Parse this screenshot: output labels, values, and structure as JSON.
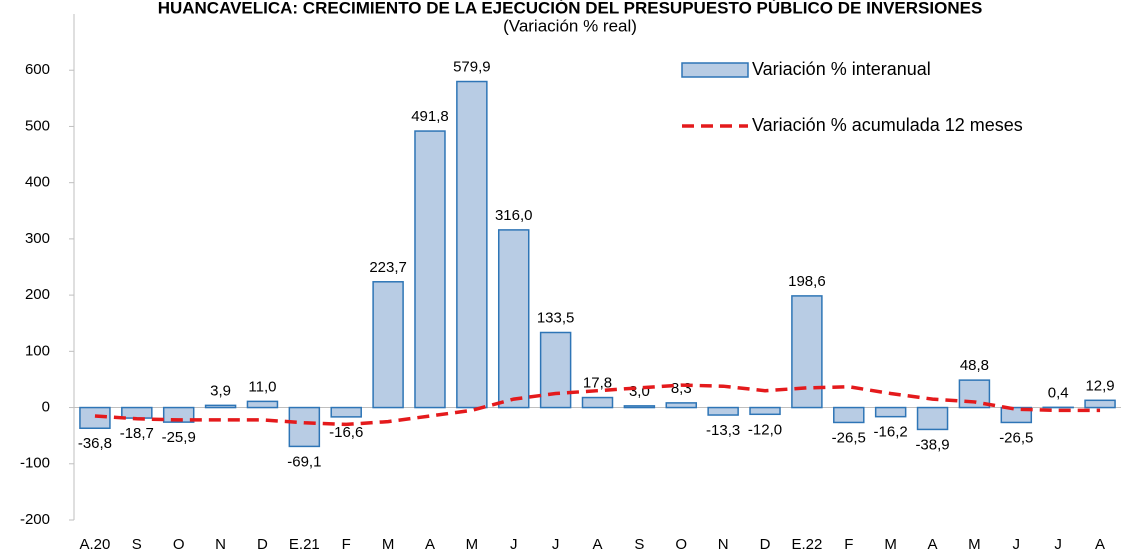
{
  "chart_data": {
    "type": "bar",
    "title": "HUANCAVELICA: CRECIMIENTO DE LA EJECUCIÓN DEL PRESUPUESTO PÚBLICO DE INVERSIONES",
    "subtitle": "(Variación % real)",
    "categories": [
      "A.20",
      "S",
      "O",
      "N",
      "D",
      "E.21",
      "F",
      "M",
      "A",
      "M",
      "J",
      "J",
      "A",
      "S",
      "O",
      "N",
      "D",
      "E.22",
      "F",
      "M",
      "A",
      "M",
      "J",
      "J",
      "A"
    ],
    "series": [
      {
        "name": "Variación % interanual",
        "type": "bar",
        "color": "#b8cce4",
        "edge": "#2e75b6",
        "values": [
          -36.8,
          -18.7,
          -25.9,
          3.9,
          11.0,
          -69.1,
          -16.6,
          223.7,
          491.8,
          579.9,
          316.0,
          133.5,
          17.8,
          3.0,
          8.3,
          -13.3,
          -12.0,
          198.6,
          -26.5,
          -16.2,
          -38.9,
          48.8,
          -26.5,
          0.4,
          12.9
        ],
        "value_labels": [
          "-36,8",
          "-18,7",
          "-25,9",
          "3,9",
          "11,0",
          "-69,1",
          "-16,6",
          "223,7",
          "491,8",
          "579,9",
          "316,0",
          "133,5",
          "17,8",
          "3,0",
          "8,3",
          "-13,3",
          "-12,0",
          "198,6",
          "-26,5",
          "-16,2",
          "-38,9",
          "48,8",
          "-26,5",
          "0,4",
          "12,9"
        ]
      },
      {
        "name": "Variación % acumulada 12 meses",
        "type": "line",
        "color": "#e41a1c",
        "values": [
          -15,
          -20,
          -22,
          -22,
          -22,
          -27,
          -30,
          -25,
          -15,
          -5,
          15,
          25,
          30,
          35,
          40,
          38,
          30,
          35,
          37,
          25,
          15,
          10,
          -3,
          -5,
          -5
        ]
      }
    ],
    "ylim": [
      -200,
      700
    ],
    "yticks": [
      -200,
      -100,
      0,
      100,
      200,
      300,
      400,
      500,
      600
    ]
  }
}
